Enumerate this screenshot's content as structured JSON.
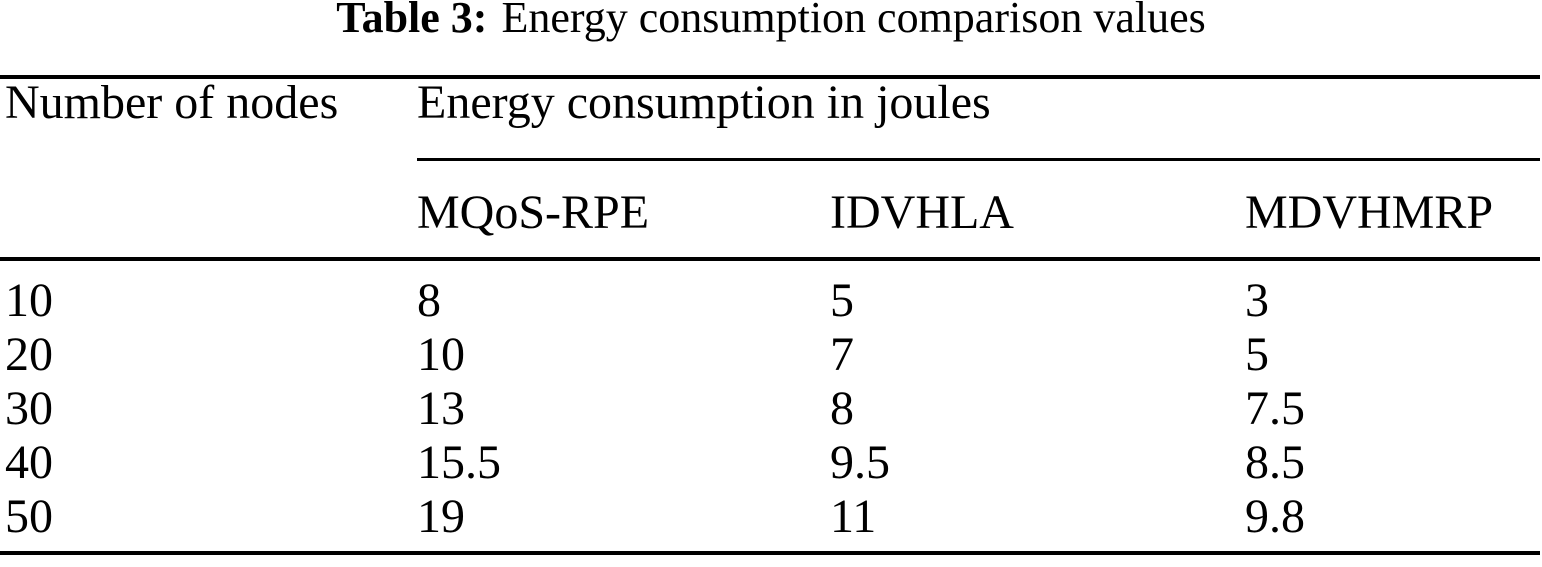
{
  "caption": {
    "label": "Table 3:",
    "title": "Energy consumption comparison values"
  },
  "table": {
    "row_header": "Number of nodes",
    "group_header": "Energy consumption in joules",
    "columns": [
      "MQoS-RPE",
      "IDVHLA",
      "MDVHMRP"
    ],
    "rows": [
      {
        "nodes": "10",
        "values": [
          "8",
          "5",
          "3"
        ]
      },
      {
        "nodes": "20",
        "values": [
          "10",
          "7",
          "5"
        ]
      },
      {
        "nodes": "30",
        "values": [
          "13",
          "8",
          "7.5"
        ]
      },
      {
        "nodes": "40",
        "values": [
          "15.5",
          "9.5",
          "8.5"
        ]
      },
      {
        "nodes": "50",
        "values": [
          "19",
          "11",
          "9.8"
        ]
      }
    ]
  },
  "chart_data": {
    "type": "table",
    "title": "Table 3: Energy consumption comparison values",
    "row_axis_label": "Number of nodes",
    "value_axis_label": "Energy consumption in joules",
    "categories": [
      10,
      20,
      30,
      40,
      50
    ],
    "series": [
      {
        "name": "MQoS-RPE",
        "values": [
          8,
          10,
          13,
          15.5,
          19
        ]
      },
      {
        "name": "IDVHLA",
        "values": [
          5,
          7,
          8,
          9.5,
          11
        ]
      },
      {
        "name": "MDVHMRP",
        "values": [
          3,
          5,
          7.5,
          8.5,
          9.8
        ]
      }
    ]
  },
  "colors": {
    "text": "#000000",
    "background": "#ffffff",
    "rule": "#000000"
  }
}
